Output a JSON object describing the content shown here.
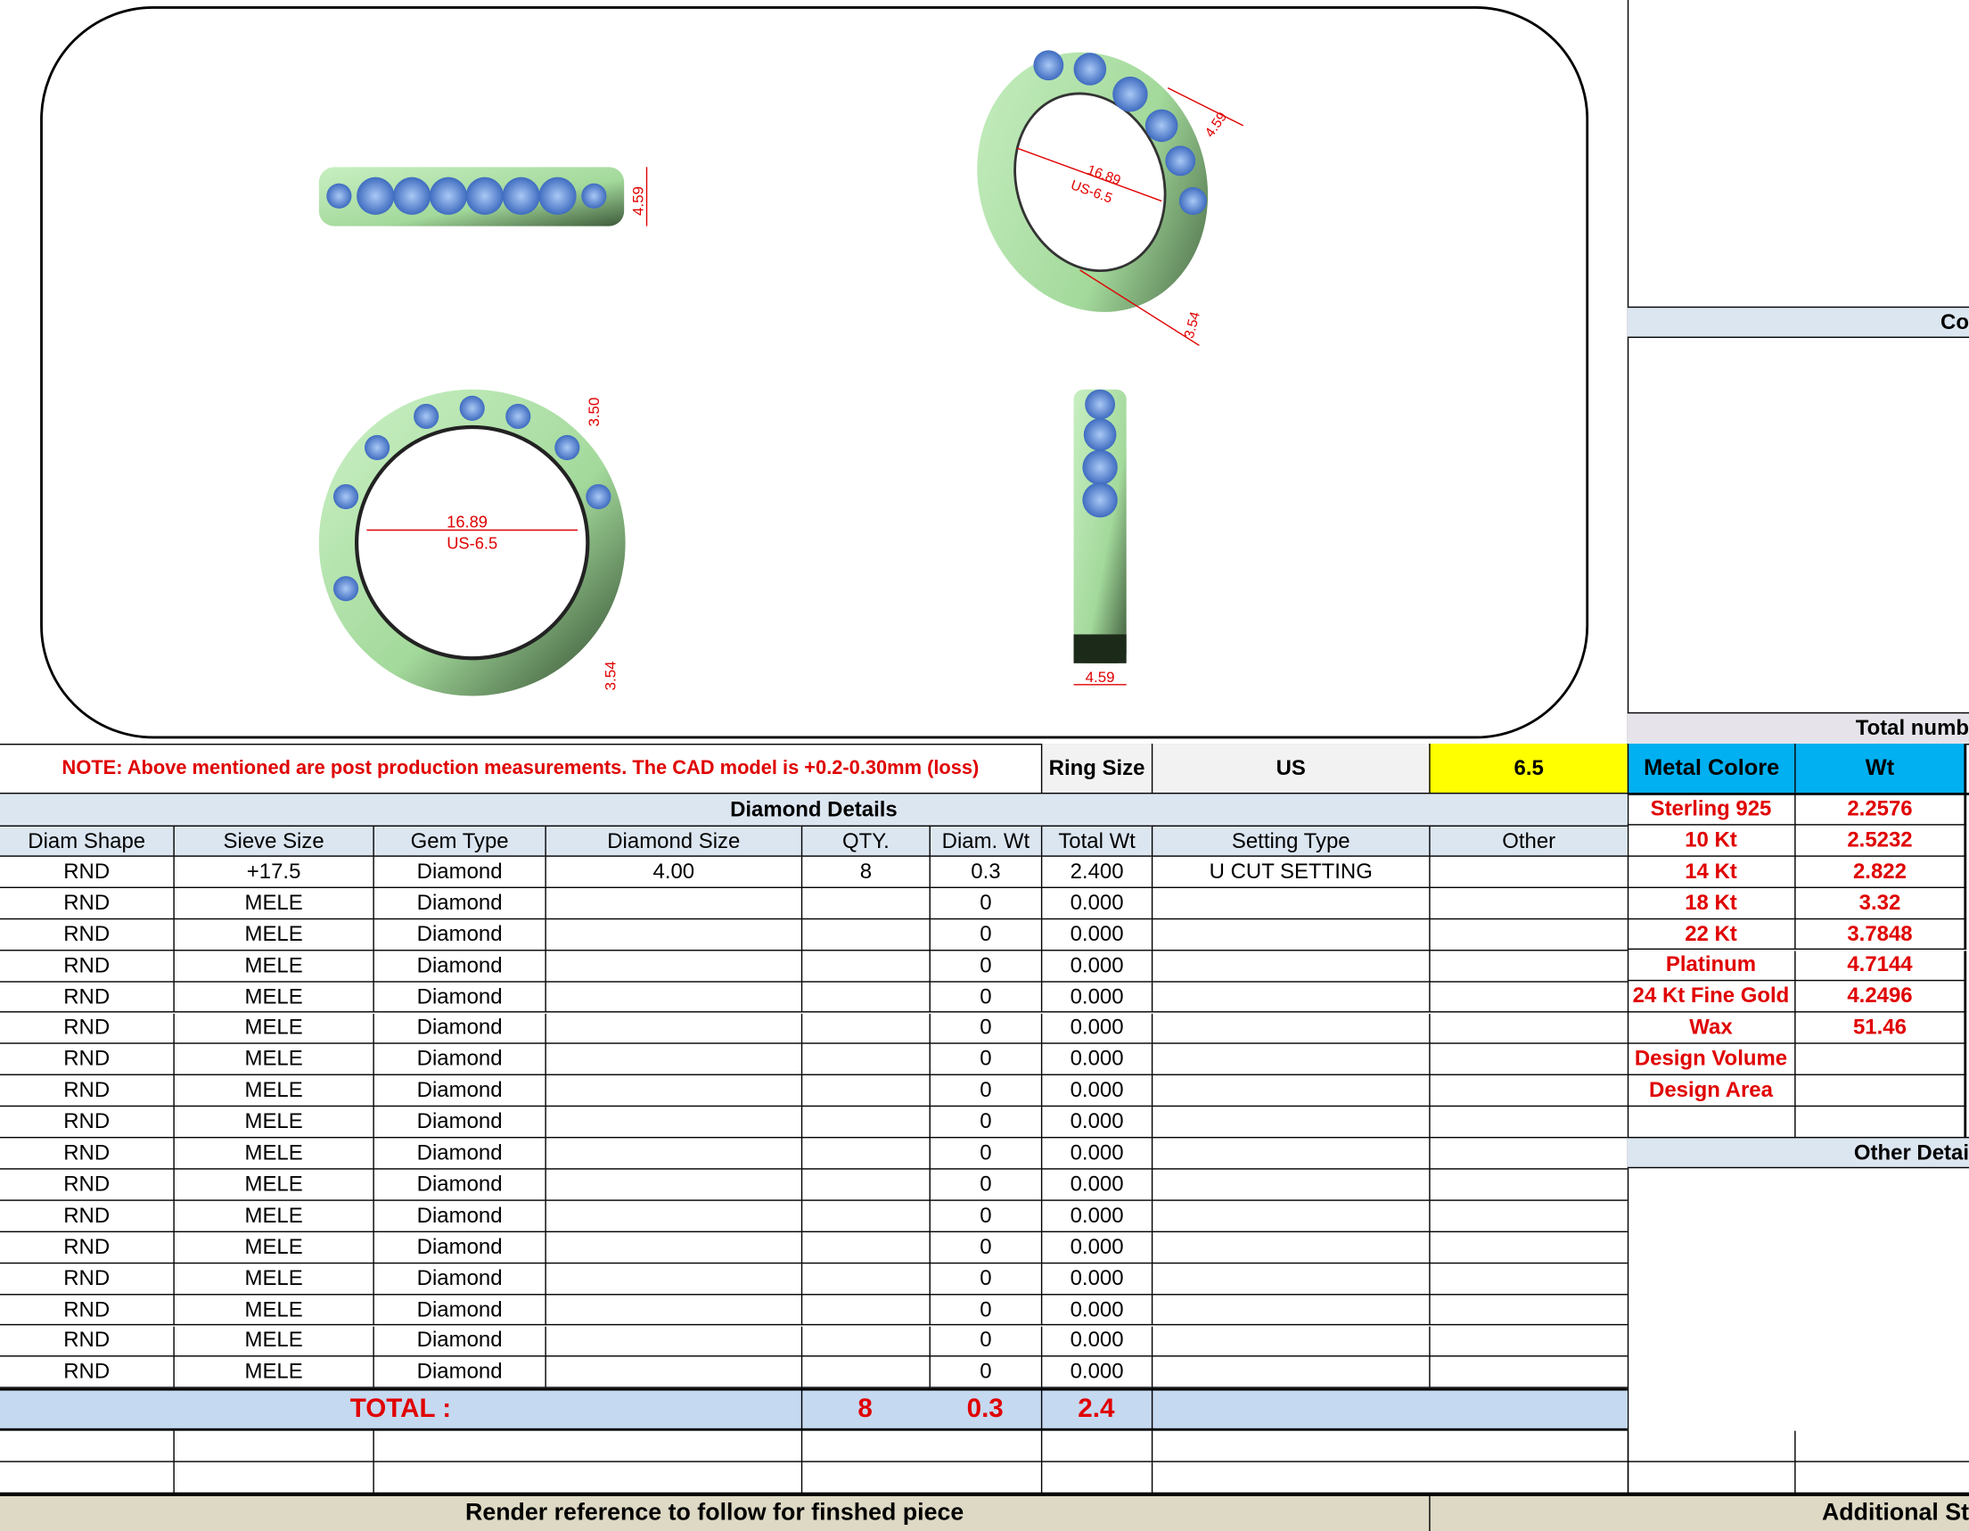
{
  "drawing": {
    "dimensions": {
      "top_view_width": "4.59",
      "inner_diameter": "16.89",
      "ring_size_label": "US-6.5",
      "front_top_height": "3.50",
      "front_bottom_height": "3.54",
      "side_width": "4.59",
      "persp_width": "4.59",
      "persp_height": "3.54"
    },
    "colors": {
      "metal": "#a9dfa2",
      "stone": "#6f9de0",
      "dimension": "#e00000"
    }
  },
  "note": "NOTE: Above mentioned are post production measurements. The CAD model is +0.2-0.30mm (loss)",
  "ring_size": {
    "label": "Ring Size",
    "system": "US",
    "value": "6.5"
  },
  "diamond_details": {
    "title": "Diamond Details",
    "columns": [
      "Diam Shape",
      "Sieve Size",
      "Gem Type",
      "Diamond Size",
      "QTY.",
      "Diam. Wt",
      "Total Wt",
      "Setting Type",
      "Other"
    ],
    "rows": [
      [
        "RND",
        "+17.5",
        "Diamond",
        "4.00",
        "8",
        "0.3",
        "2.400",
        "U CUT SETTING",
        ""
      ],
      [
        "RND",
        "MELE",
        "Diamond",
        "",
        "",
        "0",
        "0.000",
        "",
        ""
      ],
      [
        "RND",
        "MELE",
        "Diamond",
        "",
        "",
        "0",
        "0.000",
        "",
        ""
      ],
      [
        "RND",
        "MELE",
        "Diamond",
        "",
        "",
        "0",
        "0.000",
        "",
        ""
      ],
      [
        "RND",
        "MELE",
        "Diamond",
        "",
        "",
        "0",
        "0.000",
        "",
        ""
      ],
      [
        "RND",
        "MELE",
        "Diamond",
        "",
        "",
        "0",
        "0.000",
        "",
        ""
      ],
      [
        "RND",
        "MELE",
        "Diamond",
        "",
        "",
        "0",
        "0.000",
        "",
        ""
      ],
      [
        "RND",
        "MELE",
        "Diamond",
        "",
        "",
        "0",
        "0.000",
        "",
        ""
      ],
      [
        "RND",
        "MELE",
        "Diamond",
        "",
        "",
        "0",
        "0.000",
        "",
        ""
      ],
      [
        "RND",
        "MELE",
        "Diamond",
        "",
        "",
        "0",
        "0.000",
        "",
        ""
      ],
      [
        "RND",
        "MELE",
        "Diamond",
        "",
        "",
        "0",
        "0.000",
        "",
        ""
      ],
      [
        "RND",
        "MELE",
        "Diamond",
        "",
        "",
        "0",
        "0.000",
        "",
        ""
      ],
      [
        "RND",
        "MELE",
        "Diamond",
        "",
        "",
        "0",
        "0.000",
        "",
        ""
      ],
      [
        "RND",
        "MELE",
        "Diamond",
        "",
        "",
        "0",
        "0.000",
        "",
        ""
      ],
      [
        "RND",
        "MELE",
        "Diamond",
        "",
        "",
        "0",
        "0.000",
        "",
        ""
      ],
      [
        "RND",
        "MELE",
        "Diamond",
        "",
        "",
        "0",
        "0.000",
        "",
        ""
      ],
      [
        "RND",
        "MELE",
        "Diamond",
        "",
        "",
        "0",
        "0.000",
        "",
        ""
      ]
    ],
    "total": {
      "label": "TOTAL :",
      "qty": "8",
      "diam_wt": "0.3",
      "total_wt": "2.4"
    }
  },
  "metal": {
    "header": {
      "metal": "Metal Colore",
      "wt": "Wt"
    },
    "rows": [
      [
        "Sterling 925",
        "2.2576"
      ],
      [
        "10 Kt",
        "2.5232"
      ],
      [
        "14 Kt",
        "2.822"
      ],
      [
        "18 Kt",
        "3.32"
      ],
      [
        "22 Kt",
        "3.7848"
      ],
      [
        "Platinum",
        "4.7144"
      ],
      [
        "24 Kt Fine Gold",
        "4.2496"
      ],
      [
        "Wax",
        "51.46"
      ],
      [
        "Design Volume",
        ""
      ],
      [
        "Design Area",
        ""
      ],
      [
        "",
        ""
      ]
    ]
  },
  "right_panel": {
    "co_header": "Co",
    "total_number_header": "Total numb",
    "other_details_header": "Other Detai"
  },
  "footer": {
    "render_reference": "Render reference to follow for finshed piece",
    "additional": "Additional St"
  },
  "colors": {
    "header_blue": "#dce6f1",
    "total_blue": "#c5d9f1",
    "metal_header": "#00b0f0",
    "ring_size_yellow": "#ffff00",
    "footer_tan": "#ddd9c4",
    "accent_red": "#e00000"
  }
}
